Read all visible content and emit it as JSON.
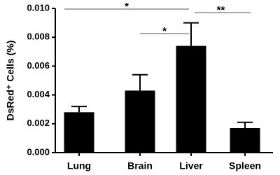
{
  "chart_data": {
    "type": "bar",
    "y_label": "DsRed⁺ Cells (%)",
    "categories": [
      "Lung",
      "Brain",
      "Liver",
      "Spleen"
    ],
    "values": [
      0.0028,
      0.0043,
      0.0074,
      0.0017
    ],
    "errors": [
      0.0004,
      0.0011,
      0.0016,
      0.0004
    ],
    "color": "#000000",
    "ylim": [
      0,
      0.01
    ],
    "yticks": [
      {
        "value": 0,
        "label": "0.000"
      },
      {
        "value": 0.002,
        "label": "0.002"
      },
      {
        "value": 0.004,
        "label": "0.004"
      },
      {
        "value": 0.006,
        "label": "0.006"
      },
      {
        "value": 0.008,
        "label": "0.008"
      },
      {
        "value": 0.01,
        "label": "0.010"
      }
    ],
    "annotations": [
      {
        "label": "*",
        "between": [
          "Lung",
          "Liver"
        ]
      },
      {
        "label": "*",
        "between": [
          "Brain",
          "Liver"
        ]
      },
      {
        "label": "**",
        "between": [
          "Liver",
          "Spleen"
        ]
      }
    ]
  }
}
